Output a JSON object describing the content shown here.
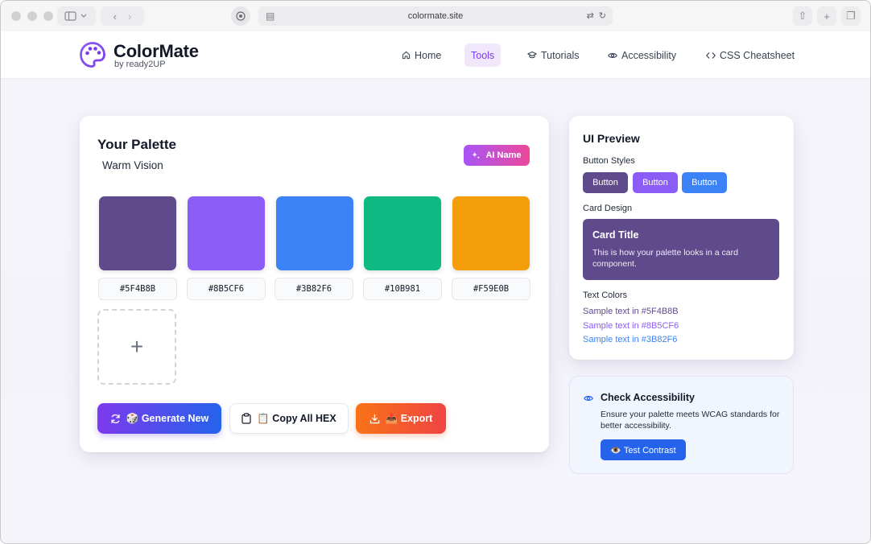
{
  "browser": {
    "url": "colormate.site"
  },
  "header": {
    "brand": "ColorMate",
    "tagline": "by ready2UP",
    "nav": [
      {
        "label": "Home",
        "icon": "home-icon"
      },
      {
        "label": "Tools",
        "icon": "",
        "active": true
      },
      {
        "label": "Tutorials",
        "icon": "graduation-cap-icon"
      },
      {
        "label": "Accessibility",
        "icon": "eye-icon"
      },
      {
        "label": "CSS Cheatsheet",
        "icon": "code-icon"
      }
    ]
  },
  "palette": {
    "title": "Your Palette",
    "name": "Warm Vision",
    "ai_button": "AI Name",
    "swatches": [
      {
        "hex": "#5F4B8B"
      },
      {
        "hex": "#8B5CF6"
      },
      {
        "hex": "#3B82F6"
      },
      {
        "hex": "#10B981"
      },
      {
        "hex": "#F59E0B"
      }
    ],
    "add_symbol": "+",
    "actions": {
      "generate": "🎲 Generate New",
      "copy": "📋 Copy All HEX",
      "export": "📤 Export"
    }
  },
  "preview": {
    "title": "UI Preview",
    "button_styles_label": "Button Styles",
    "buttons": [
      {
        "label": "Button",
        "color": "#5F4B8B"
      },
      {
        "label": "Button",
        "color": "#8B5CF6"
      },
      {
        "label": "Button",
        "color": "#3B82F6"
      }
    ],
    "card_design_label": "Card Design",
    "card": {
      "title": "Card Title",
      "body": "This is how your palette looks in a card component."
    },
    "text_colors_label": "Text Colors",
    "text_samples": [
      {
        "text": "Sample text in #5F4B8B",
        "color": "#5F4B8B"
      },
      {
        "text": "Sample text in #8B5CF6",
        "color": "#8B5CF6"
      },
      {
        "text": "Sample text in #3B82F6",
        "color": "#3B82F6"
      }
    ]
  },
  "accessibility": {
    "title": "Check Accessibility",
    "description": "Ensure your palette meets WCAG standards for better accessibility.",
    "button": "👁️ Test Contrast"
  }
}
